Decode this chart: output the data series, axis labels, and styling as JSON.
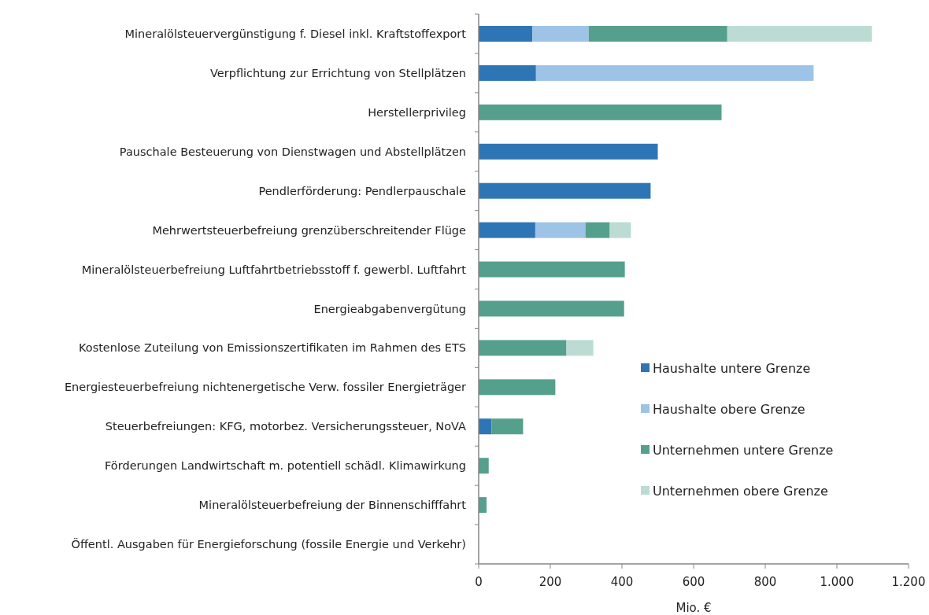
{
  "chart_data": {
    "type": "bar",
    "orientation": "horizontal",
    "stacked": true,
    "xlabel": "Mio. €",
    "categories": [
      "Mineralölsteuervergünstigung f. Diesel inkl. Kraftstoffexport",
      "Verpflichtung zur Errichtung von Stellplätzen",
      "Herstellerprivileg",
      "Pauschale Besteuerung von Dienstwagen und Abstellplätzen",
      "Pendlerförderung: Pendlerpauschale",
      "Mehrwertsteuerbefreiung grenzüberschreitender Flüge ",
      "Mineralölsteuerbefreiung Luftfahrtbetriebsstoff f. gewerbl. Luftfahrt",
      "Energieabgabenvergütung",
      "Kostenlose Zuteilung von Emissionszertifikaten im Rahmen des ETS",
      "Energiesteuerbefreiung nichtenergetische Verw. fossiler Energieträger",
      "Steuerbefreiungen: KFG, motorbez. Versicherungssteuer, NoVA",
      "Förderungen Landwirtschaft m. potentiell schädl. Klimawirkung",
      "Mineralölsteuerbefreiung der Binnenschifffahrt",
      "Öffentl. Ausgaben für Energieforschung (fossile Energie und Verkehr)"
    ],
    "series": [
      {
        "name": "Haushalte untere Grenze",
        "color": "#2e75b6",
        "values": [
          150,
          160,
          0,
          500,
          480,
          158,
          0,
          0,
          0,
          0,
          36,
          0,
          0,
          0
        ]
      },
      {
        "name": "Haushalte obere Grenze",
        "color": "#9dc3e6",
        "values": [
          157,
          775,
          0,
          0,
          0,
          140,
          0,
          0,
          0,
          0,
          0,
          0,
          0,
          0
        ]
      },
      {
        "name": "Unternehmen untere Grenze",
        "color": "#55a08c",
        "values": [
          387,
          0,
          678,
          0,
          0,
          68,
          408,
          406,
          245,
          214,
          88,
          28,
          22,
          null
        ]
      },
      {
        "name": "Unternehmen obere Grenze",
        "color": "#bbdbd3",
        "values": [
          404,
          0,
          0,
          0,
          0,
          59,
          0,
          0,
          75,
          0,
          0,
          0,
          0,
          0
        ]
      }
    ],
    "xlim": [
      0,
      1200
    ],
    "xticks": [
      0,
      200,
      400,
      600,
      800,
      {
        "value": 1000,
        "label": "1.000"
      },
      {
        "value": 1200,
        "label": "1.200"
      }
    ],
    "grid": false,
    "legend": "right"
  }
}
